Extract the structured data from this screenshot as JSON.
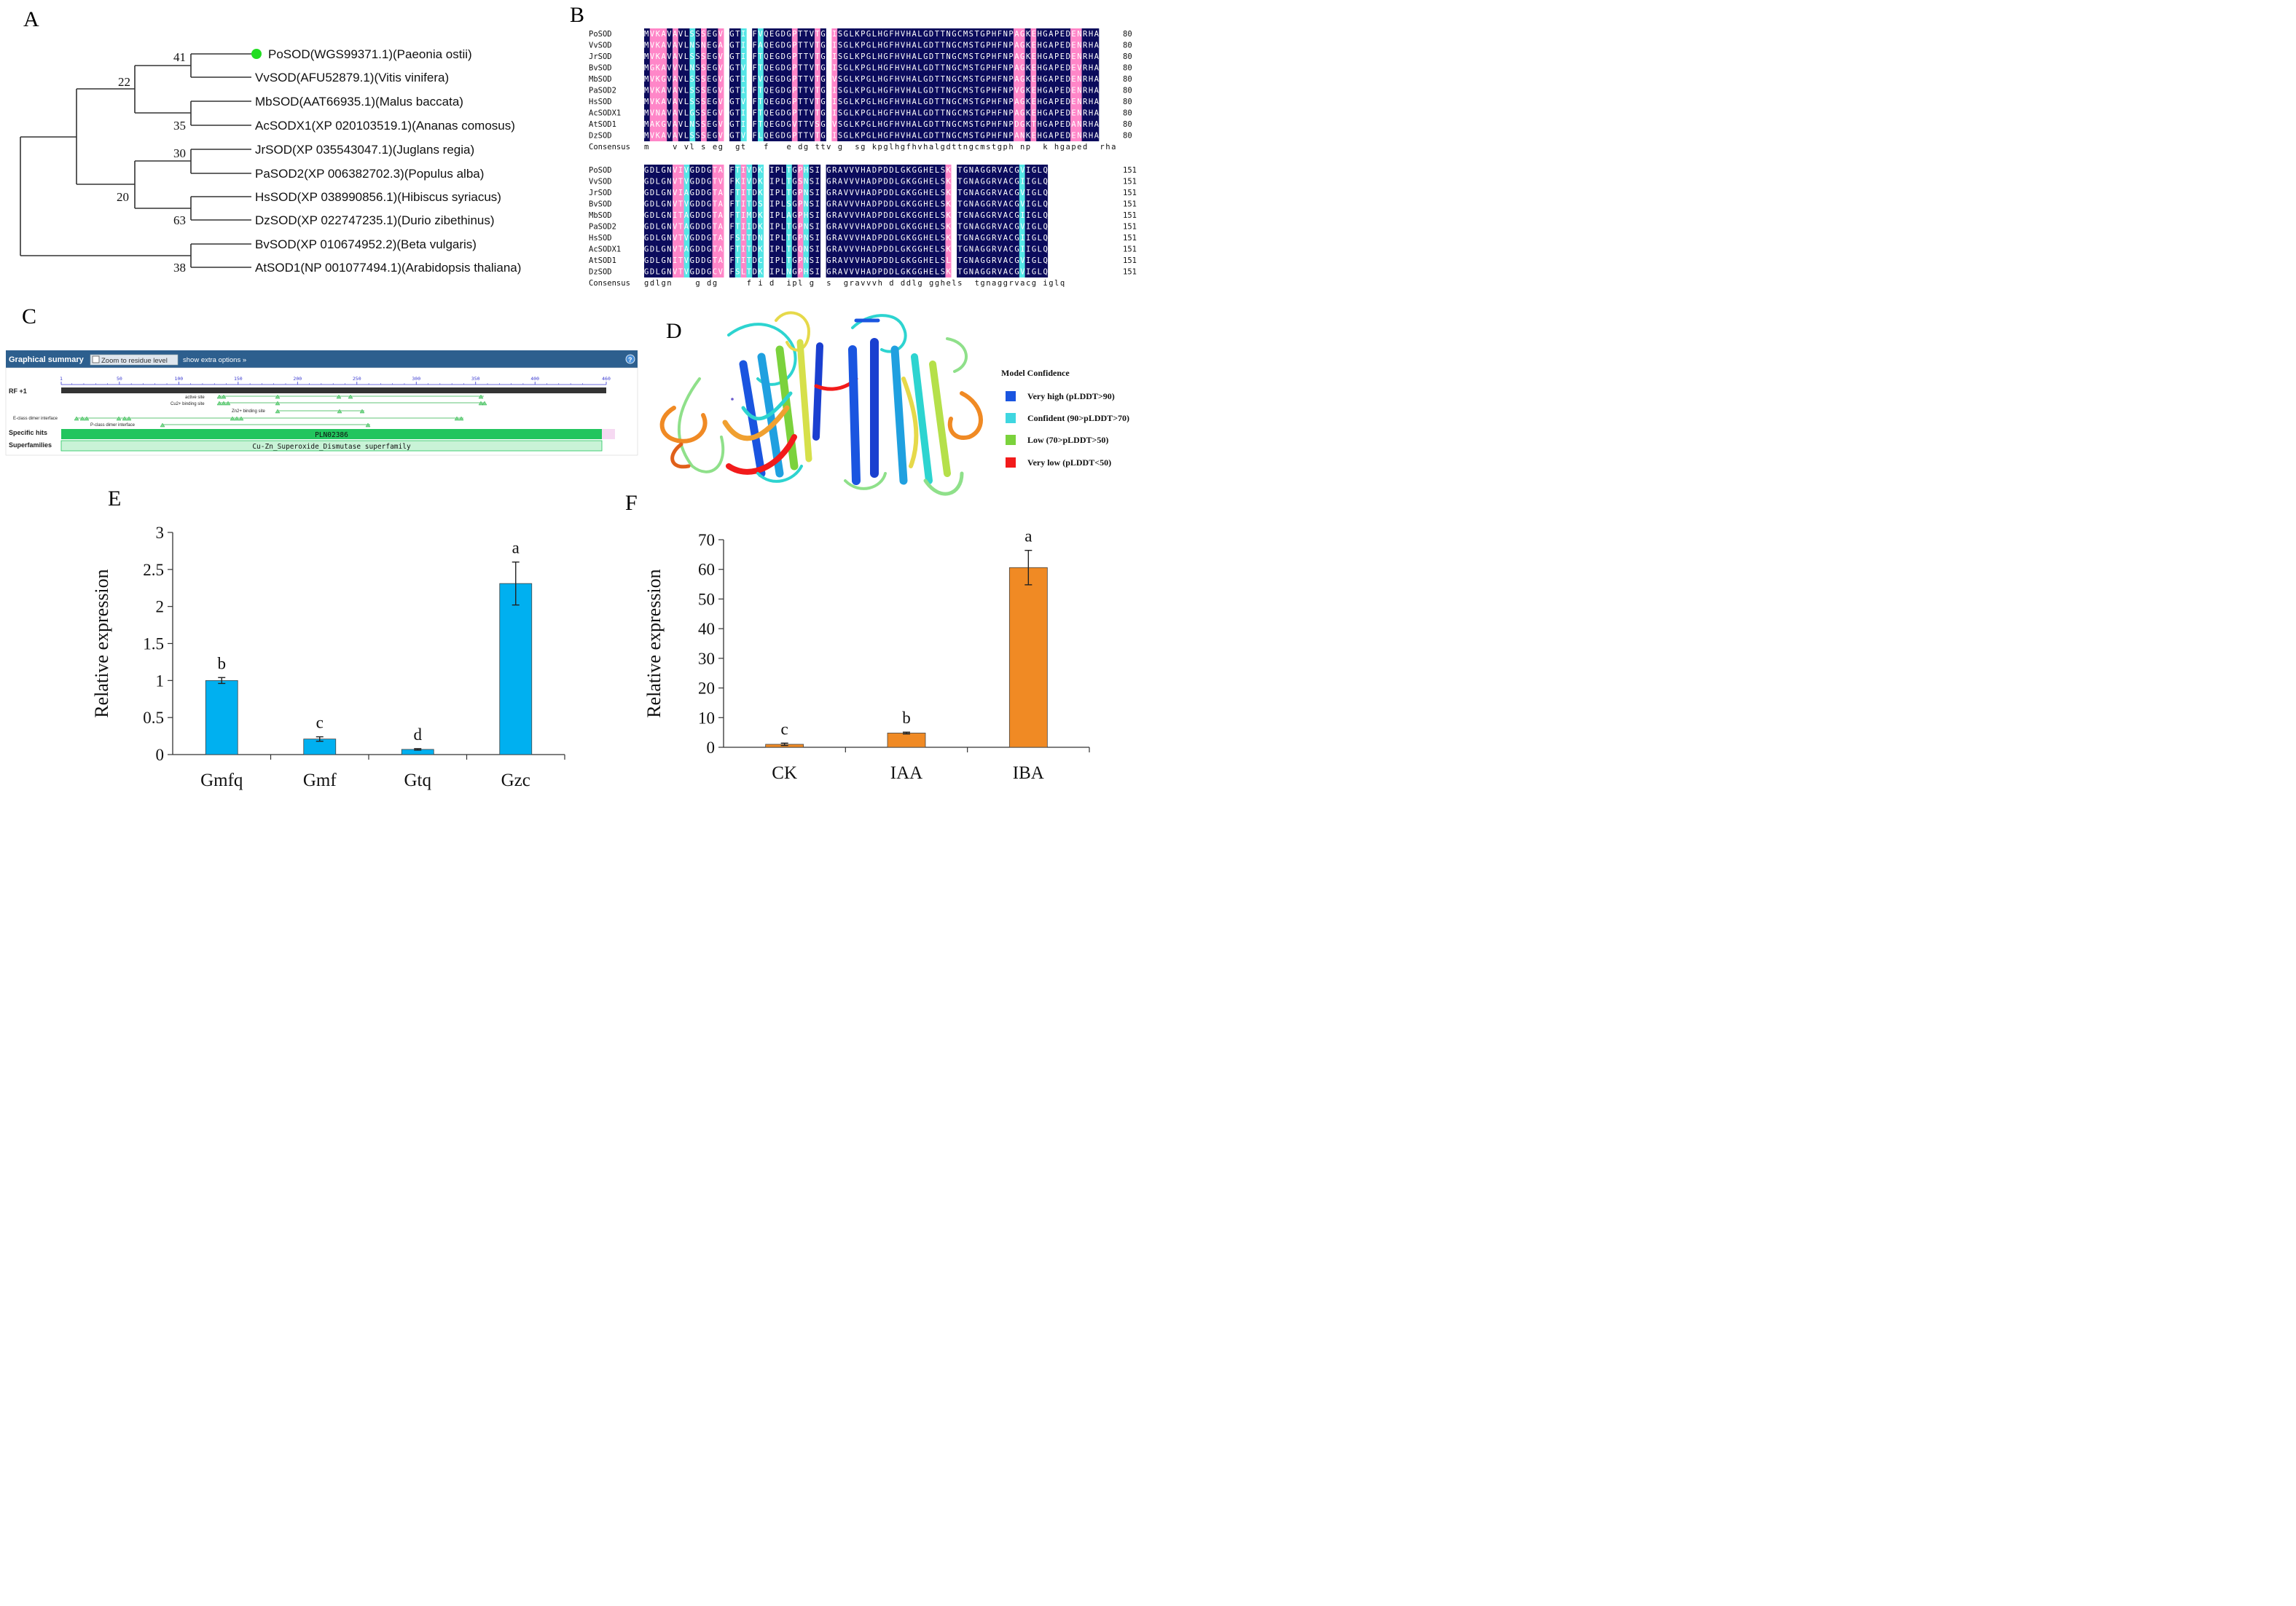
{
  "panels": {
    "a": "A",
    "b": "B",
    "c": "C",
    "d": "D",
    "e": "E",
    "f": "F"
  },
  "tree": {
    "leaves": [
      "PoSOD(WGS99371.1)(Paeonia ostii)",
      "VvSOD(AFU52879.1)(Vitis vinifera)",
      "MbSOD(AAT66935.1)(Malus baccata)",
      "AcSODX1(XP 020103519.1)(Ananas comosus)",
      "JrSOD(XP 035543047.1)(Juglans regia)",
      "PaSOD2(XP 006382702.3)(Populus alba)",
      "HsSOD(XP 038990856.1)(Hibiscus syriacus)",
      "DzSOD(XP 022747235.1)(Durio zibethinus)",
      "BvSOD(XP 010674952.2)(Beta vulgaris)",
      "AtSOD1(NP 001077494.1)(Arabidopsis thaliana)"
    ],
    "bootstrap": [
      "41",
      "22",
      "35",
      "30",
      "20",
      "63",
      "38"
    ],
    "marker_color": "#22dd22"
  },
  "alignment": {
    "block1": {
      "names": [
        "PoSOD",
        "VvSOD",
        "JrSOD",
        "BvSOD",
        "MbSOD",
        "PaSOD2",
        "HsSOD",
        "AcSODX1",
        "AtSOD1",
        "DzSOD"
      ],
      "seqs": [
        "MVKAVAVLSSSEGVSGTISFVQEGDGPTTVTGCISGLKPGLHGFHVHALGDTTNGCMSTGPHFNPAGKEHGAPEDENRHA",
        "MVKAVAVLNSNEGACGTIYFAQEGDGPTTVTGSISGLKPGLHGFHVHALGDTTNGCMSTGPHFNPAGKEHGAPEDENRHA",
        "MVKAVAVLSSSEGVSGTIYFTQEGDGPTTVTGNISGLKPGLHGFHVHALGDTTNGCMSTGPHFNPAGKEHGAPEDENRHA",
        "MGKAVVVLNSSEGVKGTVYFTQEGDGPTTVTGNISGLKPGLHGFHVHALGDTTNGCMSTGPHFNPAGKEHGAPEDEVRHA",
        "MVKGVAVLSSSEGVKGTIYFVQEGDGPTTVTGSVSGLKPGLHGFHVHALGDTTNGCMSTGPHFNPAGKEHGAPEDENRHA",
        "MVKAVAVLSSSEGVSGTIFFTQEGDGPTTVTGNISGLKPGLHGFHVHALGDTTNGCMSTGPHFNPVGKEHGAPEDENRHA",
        "MVKAVAVLSSSEGVRGTVFFTQEGDGPTTVTGNISGLKPGLHGFHVHALGDTTNGCMSTGPHFNPAGKEHGAPEDENRHA",
        "MVNAVAVLGSSEGVRGTIFFTQEGDGPTTVTGSISGLKPGLHGFHVHALGDTTNGCMSTGPHFNPAGKEHGAPEDENRHA",
        "MAKGVAVLNSSEGVTGTIFFTQEGDGVTTVSGTVSGLKPGLHGFHVHALGDTTNGCMSTGPHFNPDGKTHGAPEDANRHA",
        "MVKAVAVLSSSEGVSGTVFFLQEGDGPTTVTGNISGLKPGLHGFHVHALGDTTNGCMSTGPHFNPANKEHGAPEDENRHA"
      ],
      "consensus": "m    v vl s eg  gt   f   e dg ttv g  sg kpglhgfhvhalgdttngcmstgph np  k hgaped  rha",
      "end": "80"
    },
    "block2": {
      "names": [
        "PoSOD",
        "VvSOD",
        "JrSOD",
        "BvSOD",
        "MbSOD",
        "PaSOD2",
        "HsSOD",
        "AcSODX1",
        "AtSOD1",
        "DzSOD"
      ],
      "seqs": [
        "GDLGNVIVGDDGTAKFTIVDKHIPLTGPHSIVGRAVVVHADPDDLGKGGHELSKTTGNAGGRVACGVIGLQ",
        "GDLGNVTVGDDGTVNFKIVDKQIPLTGSNSIVGRAVVVHADPDDLGKGGHELSKSTGNAGGRVACGIIGLQ",
        "GDLGNVIAGDDGTAKFTITDKHIPLTGPNSIVGRAVVVHADPDDLGKGGHELSKSTGNAGGRVACGVIGLQ",
        "GDLGNVTVGDDGTATFTITDSHIPLSGPNSIVGRAVVVHADPDDLGKGGHELSKSTGNAGGRVACGVIGLQ",
        "GDLGNITAGDDGTATFTIMDKQIPLAGPHSIIGRAVVVHADPDDLGKGGHELSKSTGNAGGRVACGIIGLQ",
        "GDLGNVTAGDDGTATFTIIDKHIPLTGPNSIIGRAVVVHADPDDLGKGGHELSKTTGNAGGRVACGVIGLQ",
        "GDLGNVTVGDDGTASFSITDNQIPLTGPNSIIGRAVVVHADPDDLGKGGHELSKSTGNAGGRVACGIIGLQ",
        "GDLGNVTAGDDGTATFTITDKQIPLTGQNSIIGRAVVVHADPDDLGKGGHELSKTTGNAGGRVACGIIGLQ",
        "GDLGNITVGDDGTATFTITDCQIPLTGPNSIVGRAVVVHADPDDLGKGGHELSLATGNAGGRVACGVIGLQ",
        "GDLGNVTVGDDGCVSFSLTDKHIPLNGPHSIIGRAVVVHADPDDLGKGGHELSKTTGNAGGRVACGVIGLQ"
      ],
      "consensus": "gdlgn    g dg     f i d  ipl g  s  gravvvh d ddlg gghels  tgnaggrvacg iglq",
      "end": "151"
    },
    "consensus_label": "Consensus"
  },
  "cdd": {
    "header_title": "Graphical summary",
    "zoom_label": "Zoom to residue level",
    "options_label": "show extra options »",
    "help_label": "?",
    "rf_label": "RF +1",
    "ruler_ticks": [
      "1",
      "50",
      "100",
      "150",
      "200",
      "250",
      "300",
      "350",
      "400",
      "460"
    ],
    "features": [
      "active site",
      "Cu2+ binding site",
      "Zn2+ binding site",
      "E-class dimer interface",
      "P-class dimer interface"
    ],
    "specific_hits_label": "Specific hits",
    "specific_hit": "PLN02386",
    "superfamilies_label": "Superfamilies",
    "superfamily": "Cu-Zn_Superoxide_Dismutase superfamily"
  },
  "model_confidence": {
    "title": "Model Confidence",
    "items": [
      {
        "label": "Very high (pLDDT>90)",
        "color": "#1a55e0"
      },
      {
        "label": "Confident (90>pLDDT>70)",
        "color": "#3fd6e0"
      },
      {
        "label": "Low  (70>pLDDT>50)",
        "color": "#7bd23c"
      },
      {
        "label": "Very low  (pLDDT<50)",
        "color": "#f21b1b"
      }
    ]
  },
  "chart_data": [
    {
      "type": "bar",
      "categories": [
        "Gmfq",
        "Gmf",
        "Gtq",
        "Gzc"
      ],
      "values": [
        1.0,
        0.21,
        0.07,
        2.31
      ],
      "errors": [
        0.04,
        0.03,
        0.01,
        0.29
      ],
      "letters": [
        "b",
        "c",
        "d",
        "a"
      ],
      "ylabel": "Relative expression",
      "ylim": [
        0,
        3
      ],
      "yticks": [
        "0",
        "0.5",
        "1",
        "1.5",
        "2",
        "2.5",
        "3"
      ],
      "color": "#00b0f0",
      "grid": false
    },
    {
      "type": "bar",
      "categories": [
        "CK",
        "IAA",
        "IBA"
      ],
      "values": [
        1.0,
        4.8,
        60.6
      ],
      "errors": [
        0.4,
        0.3,
        5.8
      ],
      "letters": [
        "c",
        "b",
        "a"
      ],
      "ylabel": "Relative expression",
      "ylim": [
        0,
        70
      ],
      "yticks": [
        "0",
        "10",
        "20",
        "30",
        "40",
        "50",
        "60",
        "70"
      ],
      "color": "#f08a24",
      "grid": false
    }
  ]
}
